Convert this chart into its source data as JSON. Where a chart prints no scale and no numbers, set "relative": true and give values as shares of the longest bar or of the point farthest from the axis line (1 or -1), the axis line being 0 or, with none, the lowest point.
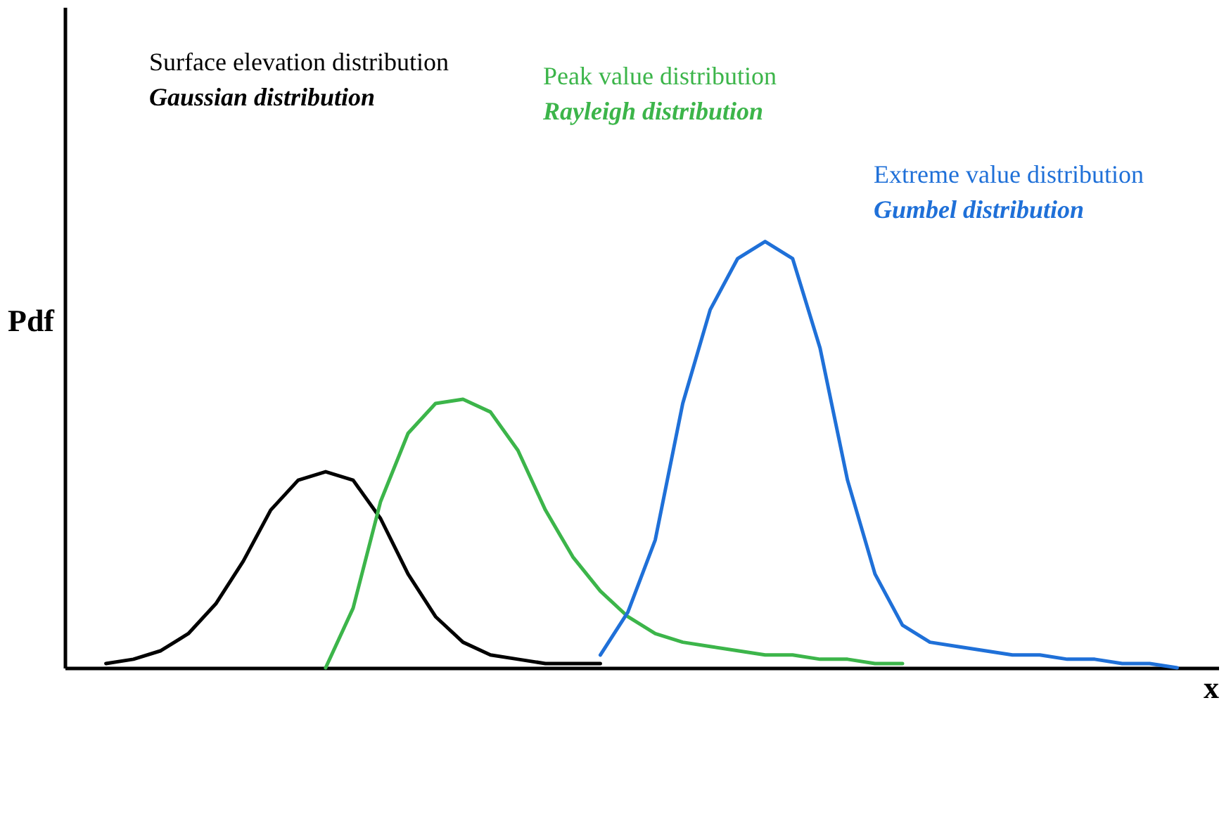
{
  "chart_data": {
    "type": "line",
    "relative": true,
    "xlabel": "x",
    "ylabel": "Pdf",
    "categories": [
      null,
      null,
      null,
      null,
      null,
      null,
      null,
      null,
      null,
      null,
      null,
      null,
      null,
      null,
      null,
      null,
      null,
      null,
      null,
      null,
      null,
      null,
      null,
      null,
      null,
      null,
      null,
      null,
      null,
      null,
      null,
      null,
      null,
      null,
      null,
      null,
      null,
      null,
      null,
      null,
      null,
      null
    ],
    "series": [
      {
        "color": "#000000",
        "values": [
          null,
          0.01,
          0.02,
          0.04,
          0.08,
          0.15,
          0.25,
          0.37,
          0.44,
          0.46,
          0.44,
          0.35,
          0.22,
          0.12,
          0.06,
          0.03,
          0.02,
          0.01,
          0.01,
          0.01,
          null,
          null,
          null,
          null,
          null,
          null,
          null,
          null,
          null,
          null,
          null,
          null,
          null,
          null,
          null,
          null,
          null,
          null,
          null,
          null,
          null,
          null
        ]
      },
      {
        "color": "#3cb54a",
        "values": [
          null,
          null,
          null,
          null,
          null,
          null,
          null,
          null,
          null,
          0,
          0.14,
          0.39,
          0.55,
          0.62,
          0.63,
          0.6,
          0.51,
          0.37,
          0.26,
          0.18,
          0.12,
          0.08,
          0.06,
          0.05,
          0.04,
          0.03,
          0.03,
          0.02,
          0.02,
          0.01,
          0.01,
          null,
          null,
          null,
          null,
          null,
          null,
          null,
          null,
          null,
          null,
          null
        ]
      },
      {
        "color": "#1f70d8",
        "values": [
          null,
          null,
          null,
          null,
          null,
          null,
          null,
          null,
          null,
          null,
          null,
          null,
          null,
          null,
          null,
          null,
          null,
          null,
          null,
          0.03,
          0.13,
          0.3,
          0.62,
          0.84,
          0.96,
          1.0,
          0.96,
          0.75,
          0.44,
          0.22,
          0.1,
          0.06,
          0.05,
          0.04,
          0.03,
          0.03,
          0.02,
          0.02,
          0.01,
          0.01,
          0,
          null
        ]
      }
    ],
    "annotations": [
      "Surface elevation distribution",
      "Gaussian distribution",
      "Peak value distribution",
      "Rayleigh distribution",
      "Extreme value distribution",
      "Gumbel distribution"
    ],
    "grid": false,
    "legend": false,
    "line_style": "solid",
    "marker": "none"
  }
}
